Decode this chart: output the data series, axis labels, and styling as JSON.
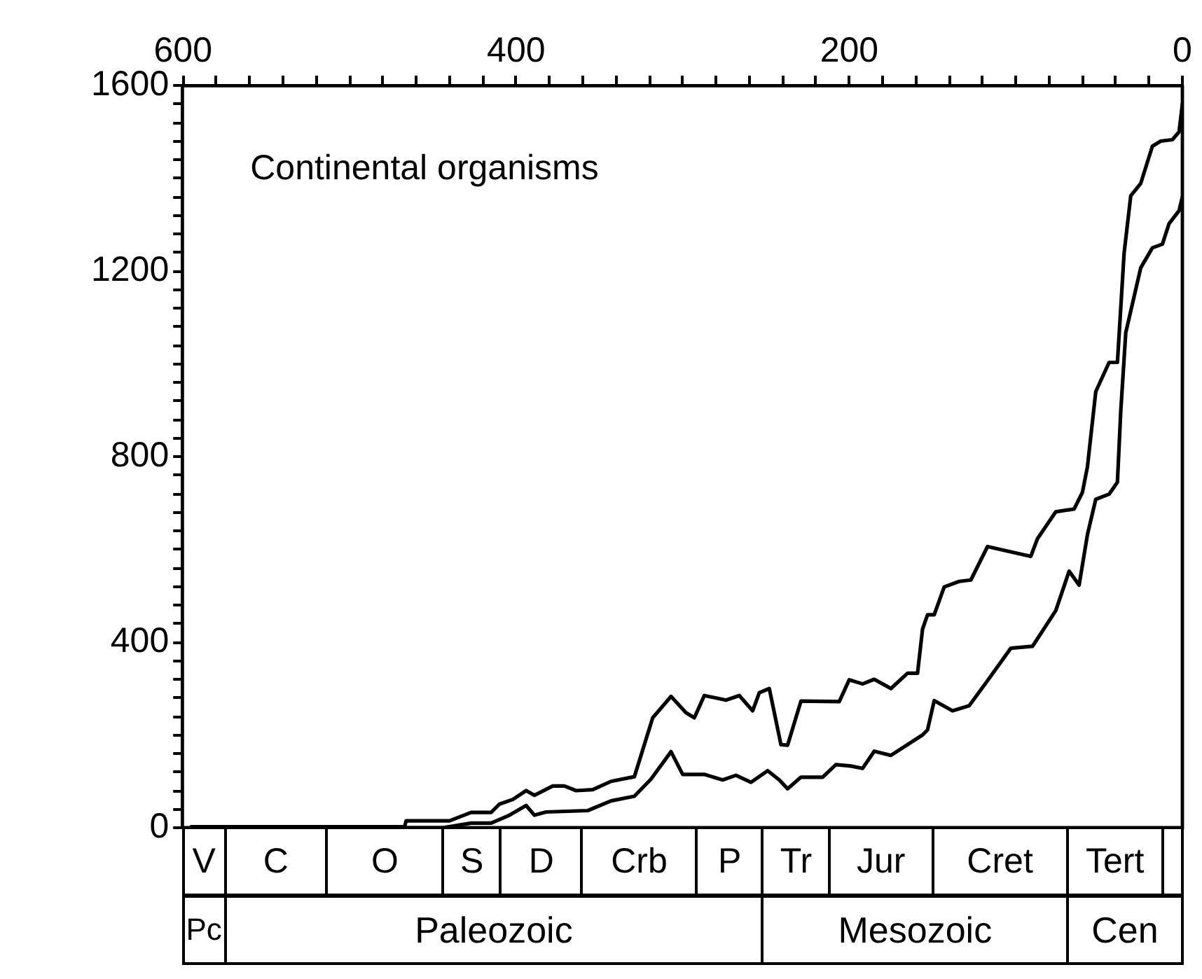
{
  "chart_data": {
    "type": "line",
    "annotations": [
      "Continental organisms",
      "V",
      "C",
      "O",
      "S",
      "D",
      "Crb",
      "P",
      "Tr",
      "Jur",
      "Cret",
      "Tert",
      "Pc",
      "Paleozoic",
      "Mesozoic",
      "Cen"
    ],
    "xlim": [
      600,
      0
    ],
    "xticks": [
      600,
      {
        "value": 580,
        "label": null
      },
      {
        "value": 560,
        "label": null
      },
      {
        "value": 540,
        "label": null
      },
      {
        "value": 520,
        "label": null
      },
      {
        "value": 500,
        "label": null
      },
      {
        "value": 480,
        "label": null
      },
      {
        "value": 460,
        "label": null
      },
      {
        "value": 440,
        "label": null
      },
      {
        "value": 420,
        "label": null
      },
      400,
      {
        "value": 380,
        "label": null
      },
      {
        "value": 360,
        "label": null
      },
      {
        "value": 340,
        "label": null
      },
      {
        "value": 320,
        "label": null
      },
      {
        "value": 300,
        "label": null
      },
      {
        "value": 280,
        "label": null
      },
      {
        "value": 260,
        "label": null
      },
      {
        "value": 240,
        "label": null
      },
      {
        "value": 220,
        "label": null
      },
      200,
      {
        "value": 180,
        "label": null
      },
      {
        "value": 160,
        "label": null
      },
      {
        "value": 140,
        "label": null
      },
      {
        "value": 120,
        "label": null
      },
      {
        "value": 100,
        "label": null
      },
      {
        "value": 80,
        "label": null
      },
      {
        "value": 60,
        "label": null
      },
      {
        "value": 40,
        "label": null
      },
      {
        "value": 20,
        "label": null
      },
      0
    ],
    "ylim": [
      0,
      1600
    ],
    "yticks": [
      0,
      {
        "value": 40,
        "label": null
      },
      {
        "value": 80,
        "label": null
      },
      {
        "value": 120,
        "label": null
      },
      {
        "value": 160,
        "label": null
      },
      {
        "value": 200,
        "label": null
      },
      {
        "value": 240,
        "label": null
      },
      {
        "value": 280,
        "label": null
      },
      {
        "value": 320,
        "label": null
      },
      {
        "value": 360,
        "label": null
      },
      400,
      {
        "value": 440,
        "label": null
      },
      {
        "value": 480,
        "label": null
      },
      {
        "value": 520,
        "label": null
      },
      {
        "value": 560,
        "label": null
      },
      {
        "value": 600,
        "label": null
      },
      {
        "value": 640,
        "label": null
      },
      {
        "value": 680,
        "label": null
      },
      {
        "value": 720,
        "label": null
      },
      {
        "value": 760,
        "label": null
      },
      800,
      {
        "value": 840,
        "label": null
      },
      {
        "value": 880,
        "label": null
      },
      {
        "value": 920,
        "label": null
      },
      {
        "value": 960,
        "label": null
      },
      {
        "value": 1000,
        "label": null
      },
      {
        "value": 1040,
        "label": null
      },
      {
        "value": 1080,
        "label": null
      },
      {
        "value": 1120,
        "label": null
      },
      {
        "value": 1160,
        "label": null
      },
      1200,
      {
        "value": 1240,
        "label": null
      },
      {
        "value": 1280,
        "label": null
      },
      {
        "value": 1320,
        "label": null
      },
      {
        "value": 1360,
        "label": null
      },
      {
        "value": 1400,
        "label": null
      },
      {
        "value": 1440,
        "label": null
      },
      {
        "value": 1480,
        "label": null
      },
      {
        "value": 1520,
        "label": null
      },
      {
        "value": 1560,
        "label": null
      },
      1600
    ],
    "grid": false,
    "legend": false,
    "marker": "none",
    "line_style": "solid",
    "series": [
      {
        "color": "#000000",
        "x": [
          595,
          467,
          466,
          440,
          427,
          415,
          410,
          402,
          394,
          389,
          378,
          371,
          364,
          354,
          343,
          329,
          318,
          307,
          298,
          293,
          287,
          274,
          266,
          258,
          254,
          248,
          241,
          237,
          229,
          206,
          200,
          192,
          185,
          175,
          165,
          159,
          156,
          153,
          149,
          143,
          134,
          127,
          117,
          91,
          87,
          76,
          65,
          60,
          57,
          52,
          44,
          39,
          35,
          31,
          25,
          18,
          13,
          6,
          2,
          0
        ],
        "values": [
          2,
          2,
          15,
          15,
          33,
          33,
          51,
          61,
          80,
          70,
          90,
          90,
          80,
          82,
          100,
          110,
          237,
          283,
          248,
          237,
          285,
          275,
          285,
          252,
          291,
          300,
          179,
          178,
          273,
          272,
          319,
          310,
          320,
          300,
          333,
          333,
          428,
          459,
          459,
          519,
          531,
          534,
          606,
          585,
          623,
          681,
          687,
          723,
          778,
          940,
          1003,
          1003,
          1238,
          1362,
          1389,
          1469,
          1480,
          1483,
          1500,
          1560
        ]
      },
      {
        "color": "#000000",
        "x": [
          595,
          444,
          427,
          415,
          404,
          394,
          389,
          382,
          357,
          343,
          329,
          319,
          307,
          300,
          287,
          276,
          268,
          259,
          249,
          242,
          237,
          229,
          216,
          208,
          199,
          192,
          185,
          175,
          156,
          153,
          149,
          138,
          128,
          117,
          103,
          90,
          76,
          68,
          62,
          57,
          52,
          44,
          39,
          37,
          34,
          25,
          18,
          12,
          8,
          2,
          0
        ],
        "values": [
          0,
          0,
          10,
          10,
          27,
          48,
          27,
          34,
          37,
          58,
          68,
          105,
          164,
          115,
          115,
          103,
          113,
          98,
          123,
          103,
          84,
          109,
          109,
          136,
          133,
          128,
          165,
          156,
          200,
          211,
          274,
          252,
          263,
          317,
          387,
          391,
          468,
          553,
          523,
          632,
          708,
          719,
          745,
          898,
          1067,
          1207,
          1250,
          1258,
          1302,
          1330,
          1360
        ]
      }
    ]
  }
}
